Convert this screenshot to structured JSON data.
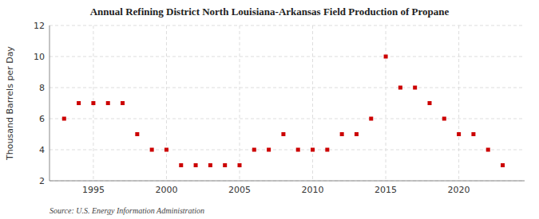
{
  "chart_data": {
    "type": "scatter",
    "title": "Annual Refining District North Louisiana-Arkansas Field Production of Propane",
    "ylabel": "Thousand Barrels per Day",
    "source": "Source: U.S. Energy Information Administration",
    "x": [
      1993,
      1994,
      1995,
      1996,
      1997,
      1998,
      1999,
      2000,
      2001,
      2002,
      2003,
      2004,
      2005,
      2006,
      2007,
      2008,
      2009,
      2010,
      2011,
      2012,
      2013,
      2014,
      2015,
      2016,
      2017,
      2018,
      2019,
      2020,
      2021,
      2022,
      2023
    ],
    "values": [
      6,
      7,
      7,
      7,
      7,
      5,
      4,
      4,
      3,
      3,
      3,
      3,
      3,
      4,
      4,
      5,
      4,
      4,
      4,
      5,
      5,
      6,
      10,
      8,
      8,
      7,
      6,
      5,
      5,
      4,
      3
    ],
    "xlim": [
      1992.0,
      2024.5
    ],
    "ylim": [
      2,
      12
    ],
    "xticks": [
      1995,
      2000,
      2005,
      2010,
      2015,
      2020
    ],
    "yticks": [
      2,
      4,
      6,
      8,
      10,
      12
    ],
    "color": "#cc0000",
    "marker": "square",
    "grid": true
  }
}
